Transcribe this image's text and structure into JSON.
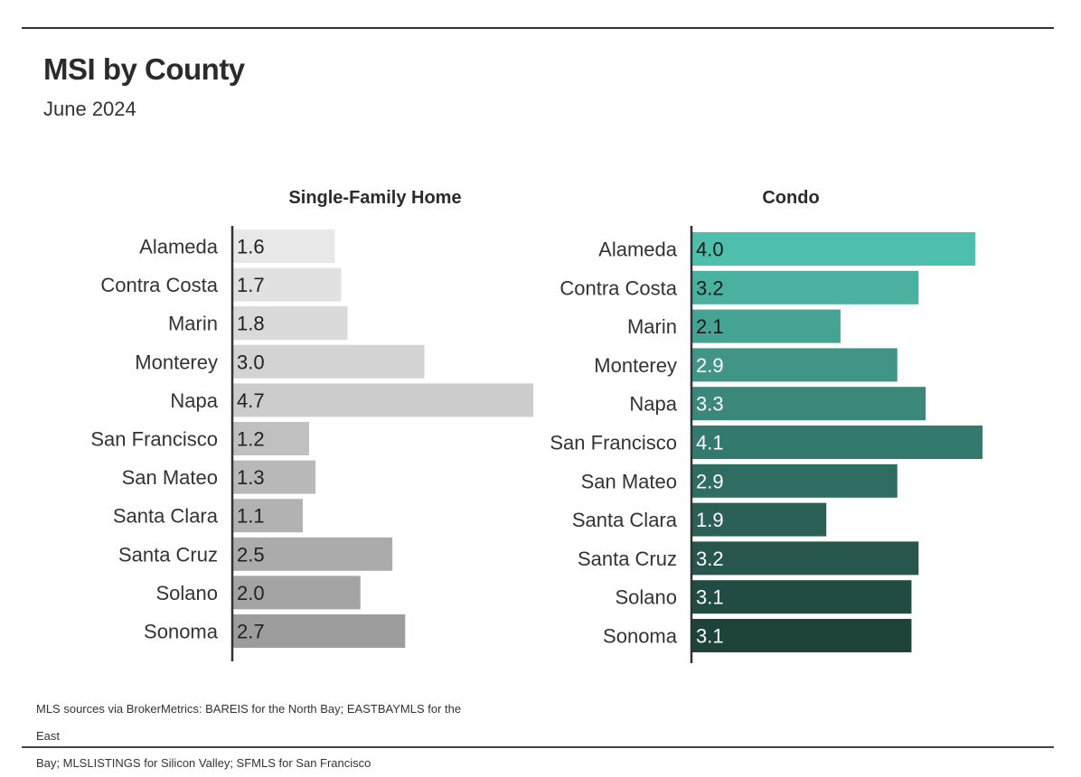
{
  "header": {
    "title": "MSI by County",
    "subtitle": "June 2024"
  },
  "source": {
    "line1": "MLS sources via BrokerMetrics: BAREIS for the North Bay; EASTBAYMLS for the East",
    "line2": "Bay; MLSLISTINGS for Silicon Valley; SFMLS for San Francisco"
  },
  "chart_data": [
    {
      "type": "bar",
      "orientation": "horizontal",
      "title": "Single-Family Home",
      "categories": [
        "Alameda",
        "Contra Costa",
        "Marin",
        "Monterey",
        "Napa",
        "San Francisco",
        "San Mateo",
        "Santa Clara",
        "Santa Cruz",
        "Solano",
        "Sonoma"
      ],
      "values": [
        1.6,
        1.7,
        1.8,
        3.0,
        4.7,
        1.2,
        1.3,
        1.1,
        2.5,
        2.0,
        2.7
      ],
      "labels": [
        "1.6",
        "1.7",
        "1.8",
        "3.0",
        "4.7",
        "1.2",
        "1.3",
        "1.1",
        "2.5",
        "2.0",
        "2.7"
      ],
      "colors": [
        "#e8e8e8",
        "#e1e1e1",
        "#dadada",
        "#d3d3d3",
        "#cccccc",
        "#c0c0c0",
        "#b9b9b9",
        "#b2b2b2",
        "#ababab",
        "#a4a4a4",
        "#9d9d9d"
      ],
      "label_color": "#222222",
      "xlim": [
        0,
        4.7
      ]
    },
    {
      "type": "bar",
      "orientation": "horizontal",
      "title": "Condo",
      "categories": [
        "Alameda",
        "Contra Costa",
        "Marin",
        "Monterey",
        "Napa",
        "San Francisco",
        "San Mateo",
        "Santa Clara",
        "Santa Cruz",
        "Solano",
        "Sonoma"
      ],
      "values": [
        4.0,
        3.2,
        2.1,
        2.9,
        3.3,
        4.1,
        2.9,
        1.9,
        3.2,
        3.1,
        3.1
      ],
      "labels": [
        "4.0",
        "3.2",
        "2.1",
        "2.9",
        "3.3",
        "4.1",
        "2.9",
        "1.9",
        "3.2",
        "3.1",
        "3.1"
      ],
      "colors": [
        "#4fbfad",
        "#4ab1a0",
        "#45a394",
        "#409587",
        "#3b877a",
        "#34796d",
        "#2f6c61",
        "#2a6056",
        "#26564c",
        "#214c43",
        "#1d433b"
      ],
      "label_colors": [
        "#1a1a1a",
        "#1a1a1a",
        "#1a1a1a",
        "#ffffff",
        "#ffffff",
        "#ffffff",
        "#ffffff",
        "#ffffff",
        "#ffffff",
        "#ffffff",
        "#ffffff"
      ],
      "xlim": [
        0,
        4.1
      ]
    }
  ]
}
